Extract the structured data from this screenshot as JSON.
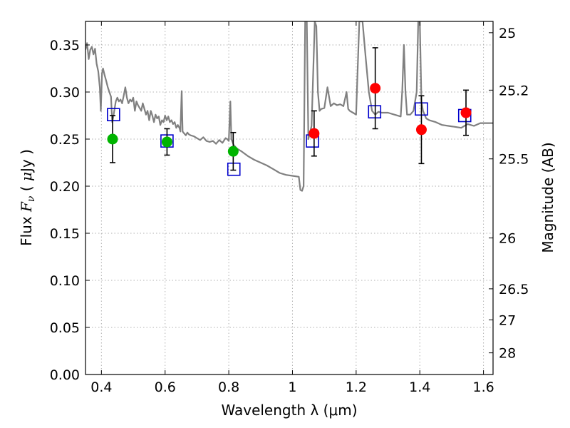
{
  "chart_data": {
    "type": "scatter",
    "xlabel": "Wavelength  λ (μm)",
    "ylabel_parts": [
      "Flux ",
      "F",
      "ν",
      "  ( ",
      "μ",
      "Jy )"
    ],
    "ylabel_right": "Magnitude (AB)",
    "xlim": [
      0.35,
      1.63
    ],
    "ylim": [
      0,
      0.375
    ],
    "x_ticks": [
      0.4,
      0.6,
      0.8,
      1,
      1.2,
      1.4,
      1.6
    ],
    "x_tick_labels": [
      "0.4",
      "0.6",
      "0.8",
      "1",
      "1.2",
      "1.4",
      "1.6"
    ],
    "y_ticks": [
      0,
      0.05,
      0.1,
      0.15,
      0.2,
      0.25,
      0.3,
      0.35
    ],
    "y_tick_labels": [
      "0.00",
      "0.05",
      "0.10",
      "0.15",
      "0.20",
      "0.25",
      "0.30",
      "0.35"
    ],
    "right_ticks": [
      {
        "label": "25",
        "flux": 0.363
      },
      {
        "label": "25.2",
        "flux": 0.302
      },
      {
        "label": "25.5",
        "flux": 0.229
      },
      {
        "label": "26",
        "flux": 0.145
      },
      {
        "label": "26.5",
        "flux": 0.091
      },
      {
        "label": "27",
        "flux": 0.058
      },
      {
        "label": "28",
        "flux": 0.023
      }
    ],
    "grid": true,
    "colors": {
      "model": "#808080",
      "green_points": "#00b400",
      "red_points": "#ff0000",
      "boxes": "#0000cc",
      "error_bars": "#000000"
    },
    "green_points": [
      {
        "x": 0.435,
        "y": 0.25,
        "yerr_low": 0.025,
        "yerr_high": 0.025
      },
      {
        "x": 0.606,
        "y": 0.247,
        "yerr_low": 0.014,
        "yerr_high": 0.014
      },
      {
        "x": 0.814,
        "y": 0.237,
        "yerr_low": 0.02,
        "yerr_high": 0.02
      }
    ],
    "red_points": [
      {
        "x": 1.068,
        "y": 0.256,
        "yerr_low": 0.024,
        "yerr_high": 0.024
      },
      {
        "x": 1.26,
        "y": 0.304,
        "yerr_low": 0.043,
        "yerr_high": 0.043
      },
      {
        "x": 1.405,
        "y": 0.26,
        "yerr_low": 0.036,
        "yerr_high": 0.036
      },
      {
        "x": 1.545,
        "y": 0.278,
        "yerr_low": 0.024,
        "yerr_high": 0.024
      }
    ],
    "model_boxes": [
      {
        "x": 0.438,
        "y": 0.276
      },
      {
        "x": 0.606,
        "y": 0.248
      },
      {
        "x": 0.816,
        "y": 0.218
      },
      {
        "x": 1.063,
        "y": 0.248
      },
      {
        "x": 1.258,
        "y": 0.279
      },
      {
        "x": 1.405,
        "y": 0.282
      },
      {
        "x": 1.541,
        "y": 0.275
      }
    ],
    "model_spectrum": [
      [
        0.35,
        0.345
      ],
      [
        0.355,
        0.352
      ],
      [
        0.36,
        0.335
      ],
      [
        0.365,
        0.345
      ],
      [
        0.37,
        0.348
      ],
      [
        0.375,
        0.34
      ],
      [
        0.38,
        0.346
      ],
      [
        0.385,
        0.33
      ],
      [
        0.39,
        0.322
      ],
      [
        0.395,
        0.305
      ],
      [
        0.398,
        0.28
      ],
      [
        0.402,
        0.32
      ],
      [
        0.405,
        0.325
      ],
      [
        0.41,
        0.318
      ],
      [
        0.415,
        0.312
      ],
      [
        0.42,
        0.305
      ],
      [
        0.425,
        0.3
      ],
      [
        0.43,
        0.295
      ],
      [
        0.434,
        0.268
      ],
      [
        0.438,
        0.275
      ],
      [
        0.445,
        0.29
      ],
      [
        0.45,
        0.294
      ],
      [
        0.455,
        0.29
      ],
      [
        0.46,
        0.292
      ],
      [
        0.465,
        0.288
      ],
      [
        0.47,
        0.296
      ],
      [
        0.475,
        0.305
      ],
      [
        0.48,
        0.294
      ],
      [
        0.485,
        0.288
      ],
      [
        0.49,
        0.292
      ],
      [
        0.495,
        0.29
      ],
      [
        0.5,
        0.294
      ],
      [
        0.505,
        0.28
      ],
      [
        0.51,
        0.29
      ],
      [
        0.515,
        0.286
      ],
      [
        0.52,
        0.283
      ],
      [
        0.525,
        0.28
      ],
      [
        0.53,
        0.288
      ],
      [
        0.535,
        0.282
      ],
      [
        0.54,
        0.276
      ],
      [
        0.545,
        0.28
      ],
      [
        0.55,
        0.27
      ],
      [
        0.555,
        0.28
      ],
      [
        0.56,
        0.275
      ],
      [
        0.565,
        0.268
      ],
      [
        0.57,
        0.276
      ],
      [
        0.575,
        0.272
      ],
      [
        0.58,
        0.274
      ],
      [
        0.585,
        0.265
      ],
      [
        0.59,
        0.27
      ],
      [
        0.595,
        0.268
      ],
      [
        0.6,
        0.275
      ],
      [
        0.605,
        0.27
      ],
      [
        0.61,
        0.274
      ],
      [
        0.615,
        0.268
      ],
      [
        0.62,
        0.27
      ],
      [
        0.625,
        0.266
      ],
      [
        0.63,
        0.268
      ],
      [
        0.635,
        0.262
      ],
      [
        0.64,
        0.265
      ],
      [
        0.645,
        0.262
      ],
      [
        0.648,
        0.258
      ],
      [
        0.652,
        0.301
      ],
      [
        0.655,
        0.258
      ],
      [
        0.66,
        0.256
      ],
      [
        0.665,
        0.254
      ],
      [
        0.67,
        0.257
      ],
      [
        0.675,
        0.255
      ],
      [
        0.68,
        0.254
      ],
      [
        0.69,
        0.253
      ],
      [
        0.7,
        0.251
      ],
      [
        0.71,
        0.249
      ],
      [
        0.72,
        0.252
      ],
      [
        0.73,
        0.248
      ],
      [
        0.74,
        0.247
      ],
      [
        0.75,
        0.248
      ],
      [
        0.76,
        0.245
      ],
      [
        0.77,
        0.249
      ],
      [
        0.78,
        0.246
      ],
      [
        0.79,
        0.251
      ],
      [
        0.795,
        0.25
      ],
      [
        0.8,
        0.248
      ],
      [
        0.805,
        0.29
      ],
      [
        0.808,
        0.25
      ],
      [
        0.815,
        0.244
      ],
      [
        0.825,
        0.24
      ],
      [
        0.84,
        0.237
      ],
      [
        0.86,
        0.232
      ],
      [
        0.88,
        0.228
      ],
      [
        0.9,
        0.225
      ],
      [
        0.92,
        0.222
      ],
      [
        0.94,
        0.218
      ],
      [
        0.96,
        0.214
      ],
      [
        0.98,
        0.212
      ],
      [
        1.0,
        0.211
      ],
      [
        1.02,
        0.21
      ],
      [
        1.025,
        0.196
      ],
      [
        1.03,
        0.195
      ],
      [
        1.035,
        0.2
      ],
      [
        1.04,
        0.375
      ],
      [
        1.045,
        0.375
      ],
      [
        1.05,
        0.25
      ],
      [
        1.06,
        0.264
      ],
      [
        1.07,
        0.375
      ],
      [
        1.075,
        0.37
      ],
      [
        1.08,
        0.3
      ],
      [
        1.085,
        0.28
      ],
      [
        1.09,
        0.282
      ],
      [
        1.1,
        0.283
      ],
      [
        1.11,
        0.305
      ],
      [
        1.12,
        0.285
      ],
      [
        1.13,
        0.288
      ],
      [
        1.14,
        0.286
      ],
      [
        1.15,
        0.287
      ],
      [
        1.16,
        0.285
      ],
      [
        1.17,
        0.3
      ],
      [
        1.175,
        0.282
      ],
      [
        1.18,
        0.28
      ],
      [
        1.19,
        0.278
      ],
      [
        1.2,
        0.276
      ],
      [
        1.21,
        0.375
      ],
      [
        1.22,
        0.375
      ],
      [
        1.23,
        0.336
      ],
      [
        1.24,
        0.3
      ],
      [
        1.25,
        0.28
      ],
      [
        1.26,
        0.276
      ],
      [
        1.27,
        0.279
      ],
      [
        1.28,
        0.278
      ],
      [
        1.29,
        0.278
      ],
      [
        1.3,
        0.278
      ],
      [
        1.32,
        0.276
      ],
      [
        1.34,
        0.274
      ],
      [
        1.345,
        0.302
      ],
      [
        1.35,
        0.35
      ],
      [
        1.355,
        0.3
      ],
      [
        1.36,
        0.276
      ],
      [
        1.37,
        0.276
      ],
      [
        1.38,
        0.28
      ],
      [
        1.39,
        0.3
      ],
      [
        1.395,
        0.375
      ],
      [
        1.4,
        0.375
      ],
      [
        1.405,
        0.29
      ],
      [
        1.41,
        0.28
      ],
      [
        1.42,
        0.272
      ],
      [
        1.43,
        0.27
      ],
      [
        1.45,
        0.268
      ],
      [
        1.47,
        0.265
      ],
      [
        1.49,
        0.264
      ],
      [
        1.51,
        0.263
      ],
      [
        1.53,
        0.262
      ],
      [
        1.55,
        0.266
      ],
      [
        1.57,
        0.264
      ],
      [
        1.59,
        0.267
      ],
      [
        1.61,
        0.267
      ],
      [
        1.63,
        0.267
      ]
    ]
  }
}
